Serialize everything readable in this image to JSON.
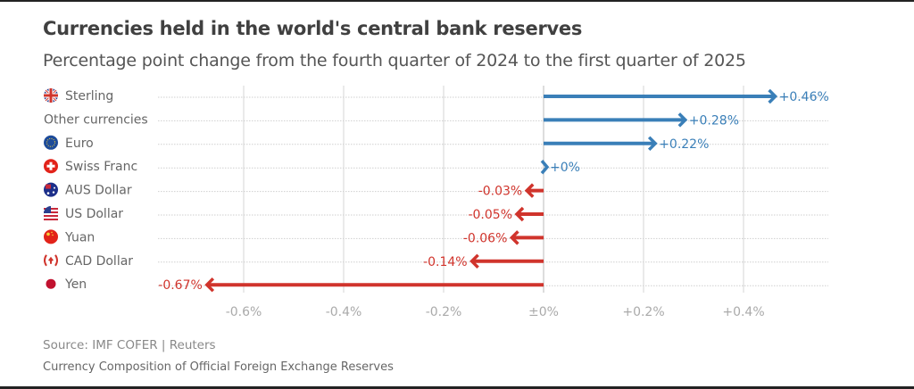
{
  "chart_data": {
    "type": "bar",
    "title": "Currencies held in the world's central bank reserves",
    "subtitle": "Percentage point change from the fourth quarter of 2024 to the first quarter of 2025",
    "xlabel": "",
    "ylabel": "",
    "xlim": [
      -0.7,
      0.56
    ],
    "grid": true,
    "ticks": [
      {
        "value": -0.6,
        "label": "-0.6%"
      },
      {
        "value": -0.4,
        "label": "-0.4%"
      },
      {
        "value": -0.2,
        "label": "-0.2%"
      },
      {
        "value": 0,
        "label": "±0%"
      },
      {
        "value": 0.2,
        "label": "+0.2%"
      },
      {
        "value": 0.4,
        "label": "+0.4%"
      }
    ],
    "categories": [
      "Sterling",
      "Other currencies",
      "Euro",
      "Swiss Franc",
      "AUS Dollar",
      "US Dollar",
      "Yuan",
      "CAD Dollar",
      "Yen"
    ],
    "icons": [
      "uk-flag-icon",
      "",
      "eu-flag-icon",
      "swiss-flag-icon",
      "australia-flag-icon",
      "us-flag-icon",
      "china-flag-icon",
      "canada-flag-icon",
      "japan-flag-icon"
    ],
    "values": [
      0.46,
      0.28,
      0.22,
      0.0,
      -0.03,
      -0.05,
      -0.06,
      -0.14,
      -0.67
    ],
    "value_labels": [
      "+0.46%",
      "+0.28%",
      "+0.22%",
      "+0%",
      "-0.03%",
      "-0.05%",
      "-0.06%",
      "-0.14%",
      "-0.67%"
    ],
    "colors": {
      "positive": "#3a7fb8",
      "negative": "#d0342c",
      "grid": "#d6d6d6",
      "dots": "#cfcfcf"
    }
  },
  "footer": {
    "source": "Source: IMF COFER | Reuters",
    "note": "Currency Composition of Official Foreign Exchange Reserves"
  }
}
